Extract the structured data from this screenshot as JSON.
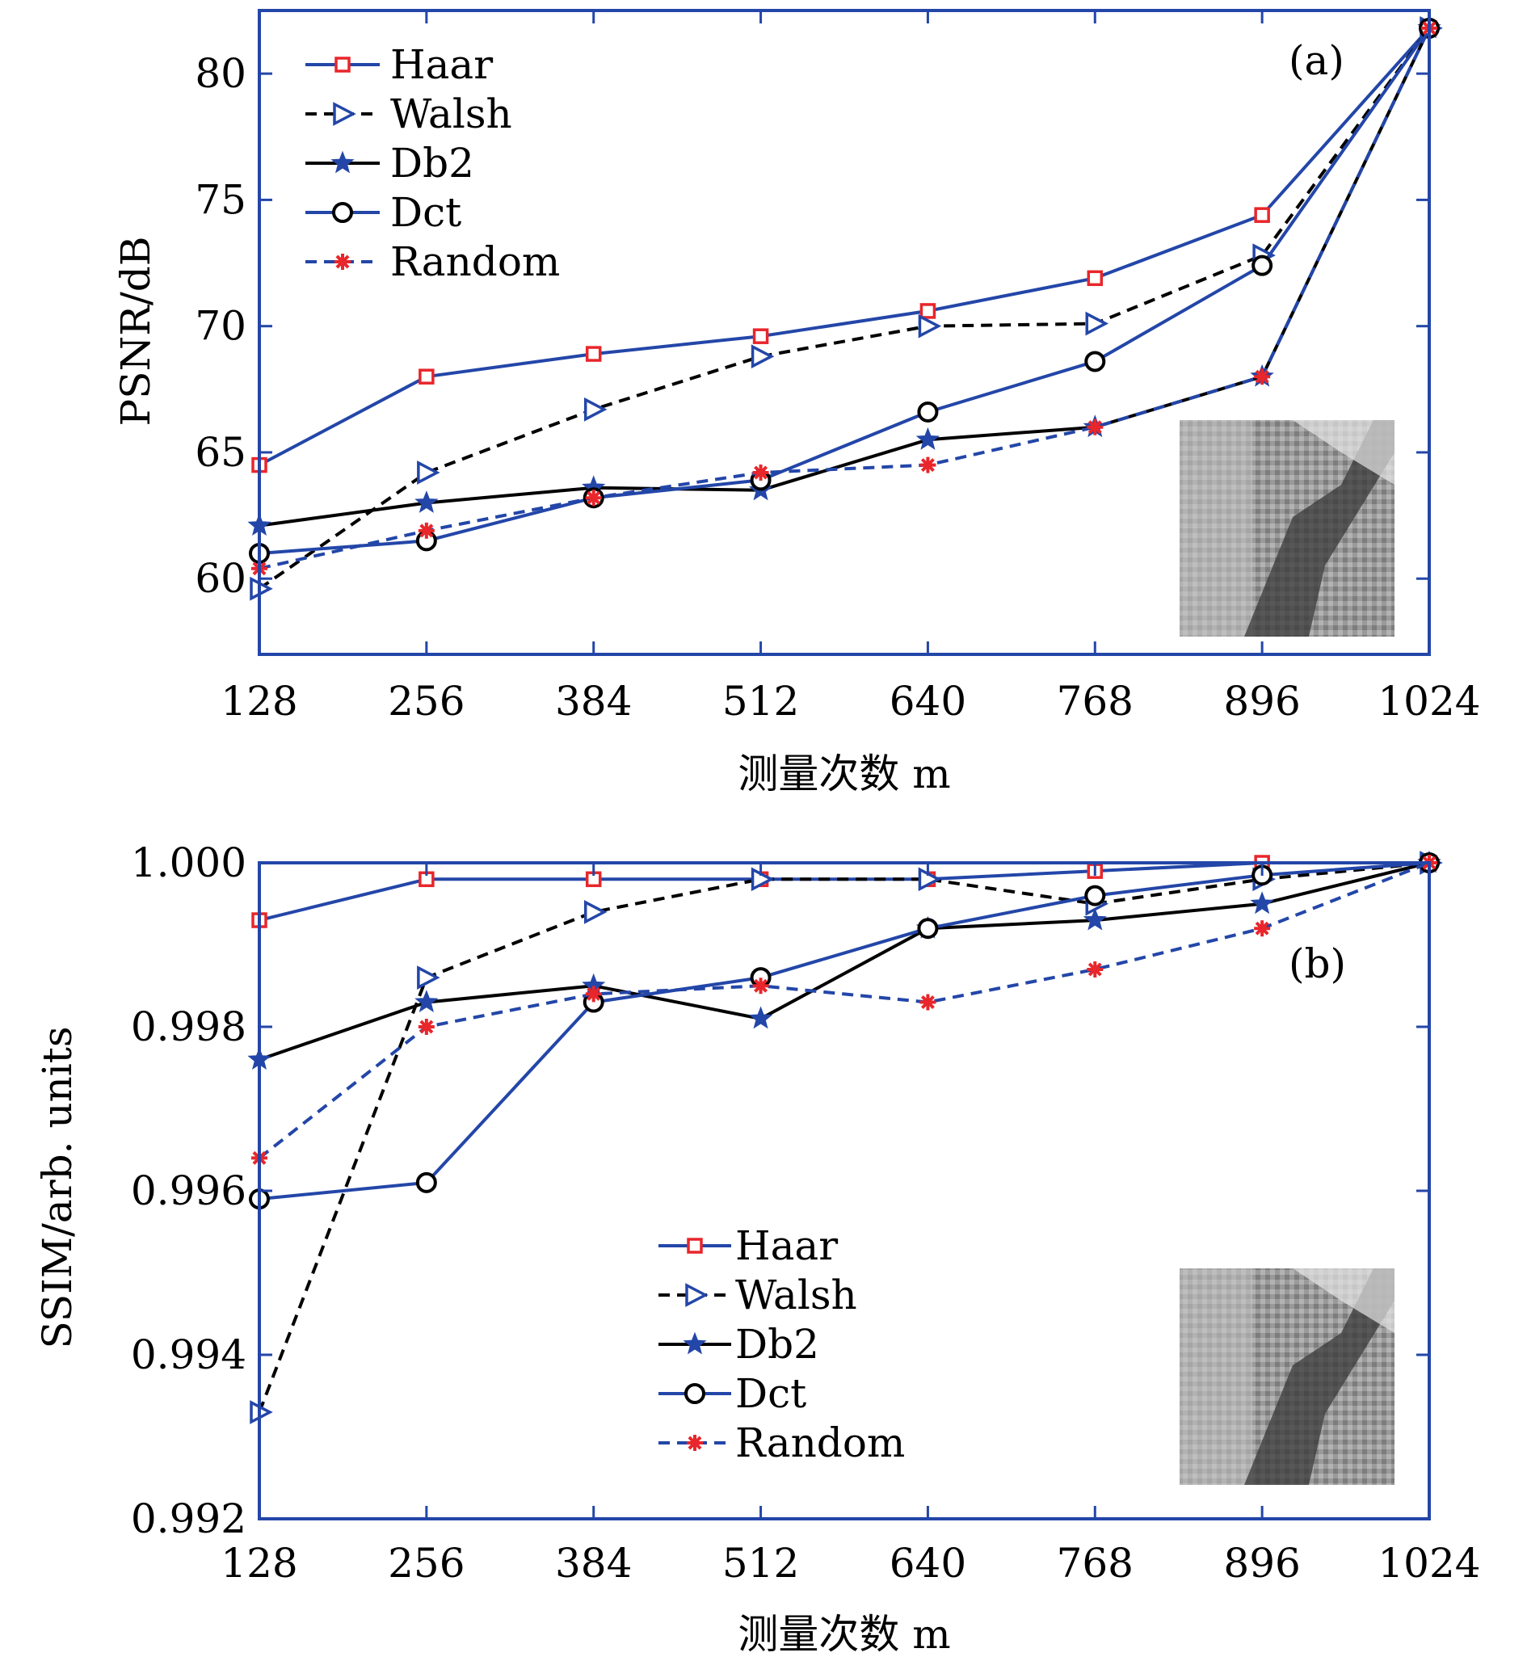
{
  "chart_data": [
    {
      "type": "line",
      "panel_label": "(a)",
      "xlabel": "测量次数 m",
      "ylabel": "PSNR/dB",
      "x": [
        128,
        256,
        384,
        512,
        640,
        768,
        896,
        1024
      ],
      "x_ticks": [
        "128",
        "256",
        "384",
        "512",
        "640",
        "768",
        "896",
        "1024"
      ],
      "xlim": [
        128,
        1024
      ],
      "ylim": [
        57,
        82.5
      ],
      "y_ticks": [
        60,
        65,
        70,
        75,
        80
      ],
      "y_tick_labels": [
        "60",
        "65",
        "70",
        "75",
        "80"
      ],
      "legend_position": "top-left",
      "series": [
        {
          "name": "Haar",
          "values": [
            64.5,
            68.0,
            68.9,
            69.6,
            70.6,
            71.9,
            74.4,
            81.8
          ],
          "color": "#2346a8",
          "marker": "square",
          "marker_color": "#e8262b",
          "dashed": false
        },
        {
          "name": "Walsh",
          "values": [
            59.6,
            64.2,
            66.7,
            68.8,
            70.0,
            70.1,
            72.8,
            81.8
          ],
          "color": "#000000",
          "marker": "triangle-right",
          "marker_color": "#2346a8",
          "dashed": true
        },
        {
          "name": "Db2",
          "values": [
            62.1,
            63.0,
            63.6,
            63.5,
            65.5,
            66.0,
            68.0,
            81.8
          ],
          "color": "#000000",
          "marker": "star",
          "marker_color": "#2346a8",
          "dashed": false
        },
        {
          "name": "Dct",
          "values": [
            61.0,
            61.5,
            63.2,
            63.9,
            66.6,
            68.6,
            72.4,
            81.8
          ],
          "color": "#2346a8",
          "marker": "circle",
          "marker_color": "#000000",
          "dashed": false
        },
        {
          "name": "Random",
          "values": [
            60.4,
            61.9,
            63.2,
            64.2,
            64.5,
            66.0,
            68.0,
            81.8
          ],
          "color": "#2346a8",
          "marker": "asterisk",
          "marker_color": "#e8262b",
          "dashed": true
        }
      ]
    },
    {
      "type": "line",
      "panel_label": "(b)",
      "xlabel": "测量次数 m",
      "ylabel": "SSIM/arb. units",
      "x": [
        128,
        256,
        384,
        512,
        640,
        768,
        896,
        1024
      ],
      "x_ticks": [
        "128",
        "256",
        "384",
        "512",
        "640",
        "768",
        "896",
        "1024"
      ],
      "xlim": [
        128,
        1024
      ],
      "ylim": [
        0.992,
        1.0
      ],
      "y_ticks": [
        0.992,
        0.994,
        0.996,
        0.998,
        1.0
      ],
      "y_tick_labels": [
        "0.992",
        "0.994",
        "0.996",
        "0.998",
        "1.000"
      ],
      "legend_position": "bottom-center",
      "series": [
        {
          "name": "Haar",
          "values": [
            0.9993,
            0.9998,
            0.9998,
            0.9998,
            0.9998,
            0.9999,
            1.0,
            1.0
          ],
          "color": "#2346a8",
          "marker": "square",
          "marker_color": "#e8262b",
          "dashed": false
        },
        {
          "name": "Walsh",
          "values": [
            0.9933,
            0.9986,
            0.9994,
            0.9998,
            0.9998,
            0.9995,
            0.9998,
            1.0
          ],
          "color": "#000000",
          "marker": "triangle-right",
          "marker_color": "#2346a8",
          "dashed": true
        },
        {
          "name": "Db2",
          "values": [
            0.9976,
            0.9983,
            0.9985,
            0.9981,
            0.9992,
            0.9993,
            0.9995,
            1.0
          ],
          "color": "#000000",
          "marker": "star",
          "marker_color": "#2346a8",
          "dashed": false
        },
        {
          "name": "Dct",
          "values": [
            0.9959,
            0.9961,
            0.9983,
            0.9986,
            0.9992,
            0.9996,
            0.99985,
            1.0
          ],
          "color": "#2346a8",
          "marker": "circle",
          "marker_color": "#000000",
          "dashed": false
        },
        {
          "name": "Random",
          "values": [
            0.9964,
            0.998,
            0.9984,
            0.9985,
            0.9983,
            0.9987,
            0.9992,
            1.0
          ],
          "color": "#2346a8",
          "marker": "asterisk",
          "marker_color": "#e8262b",
          "dashed": true
        }
      ]
    }
  ]
}
